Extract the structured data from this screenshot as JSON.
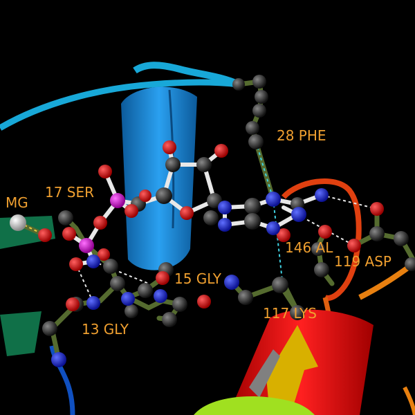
{
  "scene": {
    "background": "#000000",
    "label_color": "#f0a030",
    "labels": {
      "phe28": "28 PHE",
      "ser17": "17 SER",
      "mg": "MG",
      "ala146": "146 AL",
      "asp119": "119 ASP",
      "gly15": "15 GLY",
      "lys117": "117 LYS",
      "gly13": "13 GLY"
    },
    "colors": {
      "carbon": "#2a2a2a",
      "oxygen": "#e00000",
      "nitrogen": "#1020e0",
      "phosphorus": "#d020d0",
      "magnesium": "#d8d8d8",
      "helix_blue": "#1e90d8",
      "helix_red": "#e01010",
      "strand_yellow": "#d8b000",
      "coil_cyan": "#18a8d8",
      "coil_orange": "#e88010",
      "sheet_green": "#107048",
      "ligand_bond": "#e8e8e8",
      "residue_bond": "#556b2f"
    }
  }
}
